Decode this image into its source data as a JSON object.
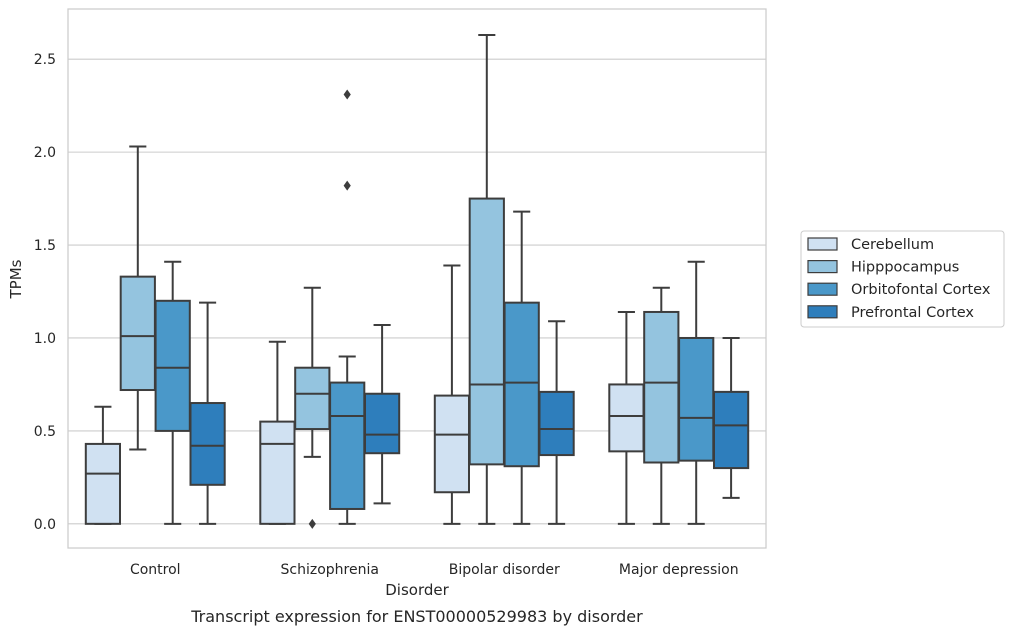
{
  "chart_data": {
    "type": "box",
    "title": "",
    "caption": "Transcript expression for ENST00000529983 by disorder",
    "xlabel": "Disorder",
    "ylabel": "TPMs",
    "ylim": [
      -0.13,
      2.77
    ],
    "yticks": [
      "0.0",
      "0.5",
      "1.0",
      "1.5",
      "2.0",
      "2.5"
    ],
    "grid": "horizontal",
    "legend_position": "right",
    "categories": [
      "Control",
      "Schizophrenia",
      "Bipolar disorder",
      "Major depression"
    ],
    "series": [
      {
        "name": "Cerebellum",
        "color": "#d0e1f2",
        "boxes": [
          {
            "whislo": 0.0,
            "q1": 0.0,
            "med": 0.27,
            "q3": 0.43,
            "whishi": 0.63,
            "fliers": []
          },
          {
            "whislo": 0.0,
            "q1": 0.0,
            "med": 0.43,
            "q3": 0.55,
            "whishi": 0.98,
            "fliers": []
          },
          {
            "whislo": 0.0,
            "q1": 0.17,
            "med": 0.48,
            "q3": 0.69,
            "whishi": 1.39,
            "fliers": []
          },
          {
            "whislo": 0.0,
            "q1": 0.39,
            "med": 0.58,
            "q3": 0.75,
            "whishi": 1.14,
            "fliers": []
          }
        ]
      },
      {
        "name": "Hipppocampus",
        "color": "#94c4df",
        "boxes": [
          {
            "whislo": 0.4,
            "q1": 0.72,
            "med": 1.01,
            "q3": 1.33,
            "whishi": 2.03,
            "fliers": []
          },
          {
            "whislo": 0.36,
            "q1": 0.51,
            "med": 0.7,
            "q3": 0.84,
            "whishi": 1.27,
            "fliers": [
              0.0
            ]
          },
          {
            "whislo": 0.0,
            "q1": 0.32,
            "med": 0.75,
            "q3": 1.75,
            "whishi": 2.63,
            "fliers": []
          },
          {
            "whislo": 0.0,
            "q1": 0.33,
            "med": 0.76,
            "q3": 1.14,
            "whishi": 1.27,
            "fliers": []
          }
        ]
      },
      {
        "name": "Orbitofontal Cortex",
        "color": "#4a98c9",
        "boxes": [
          {
            "whislo": 0.0,
            "q1": 0.5,
            "med": 0.84,
            "q3": 1.2,
            "whishi": 1.41,
            "fliers": []
          },
          {
            "whislo": 0.0,
            "q1": 0.08,
            "med": 0.58,
            "q3": 0.76,
            "whishi": 0.9,
            "fliers": [
              1.82,
              2.31
            ]
          },
          {
            "whislo": 0.0,
            "q1": 0.31,
            "med": 0.76,
            "q3": 1.19,
            "whishi": 1.68,
            "fliers": []
          },
          {
            "whislo": 0.0,
            "q1": 0.34,
            "med": 0.57,
            "q3": 1.0,
            "whishi": 1.41,
            "fliers": []
          }
        ]
      },
      {
        "name": "Prefrontal Cortex",
        "color": "#2e7ebc",
        "boxes": [
          {
            "whislo": 0.0,
            "q1": 0.21,
            "med": 0.42,
            "q3": 0.65,
            "whishi": 1.19,
            "fliers": []
          },
          {
            "whislo": 0.11,
            "q1": 0.38,
            "med": 0.48,
            "q3": 0.7,
            "whishi": 1.07,
            "fliers": []
          },
          {
            "whislo": 0.0,
            "q1": 0.37,
            "med": 0.51,
            "q3": 0.71,
            "whishi": 1.09,
            "fliers": []
          },
          {
            "whislo": 0.14,
            "q1": 0.3,
            "med": 0.53,
            "q3": 0.71,
            "whishi": 1.0,
            "fliers": []
          }
        ]
      }
    ],
    "styles": {
      "grid_color": "#cccccc",
      "frame_color": "#cccccc",
      "line_color": "#3d3d3d"
    }
  }
}
